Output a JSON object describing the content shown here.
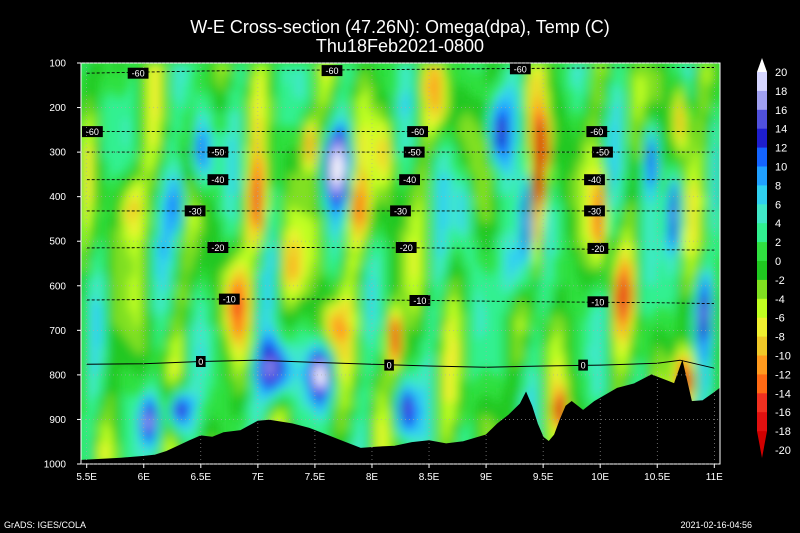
{
  "title": "W-E Cross-section (47.26N): Omega(dpa), Temp (C)",
  "subtitle": "Thu18Feb2021-0800",
  "credit": "GrADS: IGES/COLA",
  "timestamp": "2021-02-16-04:56",
  "chart_data": {
    "type": "heatmap",
    "xlim": [
      5.45,
      11.05
    ],
    "ylim": [
      1000,
      100
    ],
    "x_ticks": [
      5.5,
      6,
      6.5,
      7,
      7.5,
      8,
      8.5,
      9,
      9.5,
      10,
      10.5,
      11
    ],
    "x_tick_labels": [
      "5.5E",
      "6E",
      "6.5E",
      "7E",
      "7.5E",
      "8E",
      "8.5E",
      "9E",
      "9.5E",
      "10E",
      "10.5E",
      "11E"
    ],
    "y_ticks": [
      100,
      200,
      300,
      400,
      500,
      600,
      700,
      800,
      900,
      1000
    ],
    "y_tick_labels": [
      "100",
      "200",
      "300",
      "400",
      "500",
      "600",
      "700",
      "800",
      "900",
      "1000"
    ],
    "colorbar": {
      "levels": [
        20,
        18,
        16,
        14,
        12,
        10,
        8,
        6,
        4,
        2,
        0,
        -2,
        -4,
        -6,
        -8,
        -10,
        -12,
        -14,
        -16,
        -18,
        -20
      ],
      "colors": [
        "#ffffff",
        "#d6d6ff",
        "#a0a0f0",
        "#5050dc",
        "#1e1ecd",
        "#1464ff",
        "#20a0ff",
        "#30d0f0",
        "#40e8c8",
        "#30f090",
        "#30e040",
        "#20c820",
        "#80e020",
        "#c0ff20",
        "#f0f030",
        "#f0c828",
        "#ff9a1e",
        "#ff6a14",
        "#f03020",
        "#e01010",
        "#d00000"
      ]
    },
    "temperature_contours": [
      {
        "label": "-60",
        "points": [
          [
            5.5,
            123
          ],
          [
            6.5,
            118
          ],
          [
            7.5,
            116
          ],
          [
            8.5,
            114
          ],
          [
            9.5,
            112
          ],
          [
            10.5,
            110
          ],
          [
            11.0,
            110
          ]
        ]
      },
      {
        "label": "-60",
        "points": [
          [
            5.5,
            254
          ],
          [
            6.5,
            254
          ],
          [
            7.5,
            254
          ],
          [
            8.5,
            254
          ],
          [
            9.5,
            254
          ],
          [
            10.5,
            254
          ],
          [
            11.0,
            254
          ]
        ]
      },
      {
        "label": "-50",
        "points": [
          [
            5.5,
            300
          ],
          [
            6.5,
            300
          ],
          [
            7.5,
            300
          ],
          [
            8.5,
            300
          ],
          [
            9.5,
            300
          ],
          [
            10.5,
            300
          ],
          [
            11.0,
            300
          ]
        ]
      },
      {
        "label": "-40",
        "points": [
          [
            5.5,
            362
          ],
          [
            6.5,
            362
          ],
          [
            7.5,
            362
          ],
          [
            8.5,
            362
          ],
          [
            9.5,
            362
          ],
          [
            10.5,
            362
          ],
          [
            11.0,
            362
          ]
        ]
      },
      {
        "label": "-30",
        "points": [
          [
            5.5,
            432
          ],
          [
            6.5,
            432
          ],
          [
            7.5,
            432
          ],
          [
            8.5,
            432
          ],
          [
            9.5,
            432
          ],
          [
            10.5,
            432
          ],
          [
            11.0,
            432
          ]
        ]
      },
      {
        "label": "-20",
        "points": [
          [
            5.5,
            515
          ],
          [
            6.5,
            514
          ],
          [
            7.5,
            514
          ],
          [
            8.5,
            515
          ],
          [
            9.5,
            517
          ],
          [
            10.5,
            519
          ],
          [
            11.0,
            520
          ]
        ]
      },
      {
        "label": "-10",
        "points": [
          [
            5.5,
            632
          ],
          [
            6.5,
            630
          ],
          [
            7.5,
            630
          ],
          [
            8.5,
            633
          ],
          [
            9.5,
            636
          ],
          [
            10.5,
            638
          ],
          [
            11.0,
            640
          ]
        ]
      },
      {
        "label": "0",
        "points": [
          [
            5.5,
            776
          ],
          [
            6.0,
            775
          ],
          [
            6.5,
            770
          ],
          [
            7.0,
            767
          ],
          [
            7.5,
            772
          ],
          [
            8.0,
            776
          ],
          [
            8.5,
            780
          ],
          [
            9.0,
            783
          ],
          [
            9.5,
            780
          ],
          [
            10.0,
            778
          ],
          [
            10.5,
            774
          ],
          [
            10.7,
            767
          ],
          [
            11.0,
            785
          ]
        ]
      }
    ],
    "contour_labels": [
      {
        "text": "-60",
        "x": 5.95,
        "y": 123
      },
      {
        "text": "-60",
        "x": 7.65,
        "y": 117
      },
      {
        "text": "-60",
        "x": 9.3,
        "y": 113
      },
      {
        "text": "-60",
        "x": 5.55,
        "y": 254
      },
      {
        "text": "-60",
        "x": 8.4,
        "y": 254
      },
      {
        "text": "-60",
        "x": 9.97,
        "y": 254
      },
      {
        "text": "-50",
        "x": 6.65,
        "y": 300
      },
      {
        "text": "-50",
        "x": 8.37,
        "y": 300
      },
      {
        "text": "-50",
        "x": 10.02,
        "y": 300
      },
      {
        "text": "-40",
        "x": 6.65,
        "y": 362
      },
      {
        "text": "-40",
        "x": 8.33,
        "y": 362
      },
      {
        "text": "-40",
        "x": 9.95,
        "y": 362
      },
      {
        "text": "-30",
        "x": 6.45,
        "y": 432
      },
      {
        "text": "-30",
        "x": 8.25,
        "y": 432
      },
      {
        "text": "-30",
        "x": 9.95,
        "y": 432
      },
      {
        "text": "-20",
        "x": 6.65,
        "y": 514
      },
      {
        "text": "-20",
        "x": 8.3,
        "y": 514
      },
      {
        "text": "-20",
        "x": 9.98,
        "y": 516
      },
      {
        "text": "-10",
        "x": 6.75,
        "y": 630
      },
      {
        "text": "-10",
        "x": 8.42,
        "y": 633
      },
      {
        "text": "-10",
        "x": 9.98,
        "y": 636
      },
      {
        "text": "0",
        "x": 6.5,
        "y": 770
      },
      {
        "text": "0",
        "x": 8.15,
        "y": 778
      },
      {
        "text": "0",
        "x": 9.85,
        "y": 778
      }
    ],
    "terrain": [
      [
        5.45,
        992
      ],
      [
        5.6,
        990
      ],
      [
        5.8,
        987
      ],
      [
        6.0,
        983
      ],
      [
        6.1,
        980
      ],
      [
        6.2,
        972
      ],
      [
        6.3,
        960
      ],
      [
        6.4,
        948
      ],
      [
        6.5,
        937
      ],
      [
        6.6,
        940
      ],
      [
        6.7,
        930
      ],
      [
        6.85,
        925
      ],
      [
        7.0,
        904
      ],
      [
        7.1,
        902
      ],
      [
        7.3,
        910
      ],
      [
        7.45,
        920
      ],
      [
        7.6,
        935
      ],
      [
        7.75,
        950
      ],
      [
        7.9,
        965
      ],
      [
        8.05,
        962
      ],
      [
        8.2,
        960
      ],
      [
        8.35,
        952
      ],
      [
        8.5,
        948
      ],
      [
        8.65,
        955
      ],
      [
        8.8,
        950
      ],
      [
        9.0,
        935
      ],
      [
        9.1,
        910
      ],
      [
        9.2,
        890
      ],
      [
        9.3,
        865
      ],
      [
        9.35,
        840
      ],
      [
        9.4,
        870
      ],
      [
        9.45,
        910
      ],
      [
        9.5,
        940
      ],
      [
        9.55,
        950
      ],
      [
        9.6,
        935
      ],
      [
        9.65,
        900
      ],
      [
        9.7,
        870
      ],
      [
        9.75,
        860
      ],
      [
        9.85,
        880
      ],
      [
        9.95,
        860
      ],
      [
        10.05,
        845
      ],
      [
        10.15,
        830
      ],
      [
        10.3,
        820
      ],
      [
        10.45,
        800
      ],
      [
        10.55,
        810
      ],
      [
        10.65,
        820
      ],
      [
        10.72,
        770
      ],
      [
        10.8,
        860
      ],
      [
        10.9,
        858
      ],
      [
        11.0,
        840
      ],
      [
        11.05,
        830
      ]
    ]
  }
}
